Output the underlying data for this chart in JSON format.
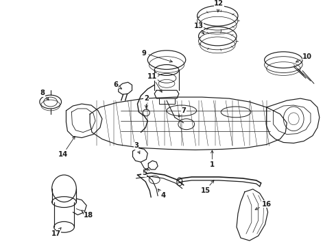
{
  "bg_color": "#ffffff",
  "line_color": "#1a1a1a",
  "fig_width": 4.9,
  "fig_height": 3.6,
  "dpi": 100,
  "label_fontsize": 7.0,
  "lw": 0.85
}
